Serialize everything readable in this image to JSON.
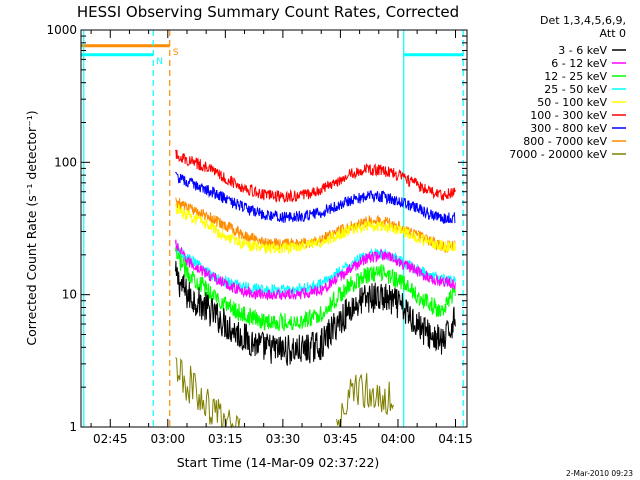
{
  "chart_data": {
    "type": "line",
    "title": "HESSI Observing Summary Count Rates, Corrected",
    "xlabel": "Start Time (14-Mar-09 02:37:22)",
    "ylabel": "Corrected Count Rate (s⁻¹ detector⁻¹)",
    "yscale": "log",
    "ylim": [
      1,
      1000
    ],
    "xlim_minutes": [
      157.37,
      258.0
    ],
    "x_ticks": [
      {
        "t": 165,
        "label": "02:45"
      },
      {
        "t": 180,
        "label": "03:00"
      },
      {
        "t": 195,
        "label": "03:15"
      },
      {
        "t": 210,
        "label": "03:30"
      },
      {
        "t": 225,
        "label": "03:45"
      },
      {
        "t": 240,
        "label": "04:00"
      },
      {
        "t": 255,
        "label": "04:15"
      }
    ],
    "y_ticks": [
      {
        "v": 1,
        "label": "1"
      },
      {
        "v": 10,
        "label": "10"
      },
      {
        "v": 100,
        "label": "100"
      },
      {
        "v": 1000,
        "label": "1000"
      }
    ],
    "grid": false,
    "legend_placement": "right",
    "legend_header": [
      "Det 1,3,4,5,6,9,",
      "Att 0"
    ],
    "series": [
      {
        "name": "3 - 6 keV",
        "color": "#000000",
        "x": [
          182,
          185,
          190,
          195,
          200,
          205,
          210,
          215,
          220,
          224,
          228,
          232,
          236,
          240,
          244,
          248,
          252,
          255
        ],
        "y": [
          14,
          10,
          8,
          6,
          4.7,
          4,
          3.8,
          3.8,
          4.2,
          6,
          8,
          9.5,
          9.5,
          8.5,
          6.5,
          5,
          4.3,
          7
        ]
      },
      {
        "name": "6 - 12 keV",
        "color": "#ff00ff",
        "x": [
          182,
          185,
          190,
          195,
          200,
          205,
          210,
          215,
          220,
          224,
          228,
          232,
          236,
          240,
          244,
          248,
          252,
          255
        ],
        "y": [
          24,
          18,
          14.5,
          12,
          10.5,
          10,
          10,
          10.2,
          11,
          13,
          16,
          19,
          20,
          18,
          15.5,
          13.5,
          12.5,
          12
        ]
      },
      {
        "name": "12 - 25 keV",
        "color": "#00ff00",
        "x": [
          182,
          185,
          190,
          195,
          200,
          205,
          210,
          215,
          220,
          224,
          228,
          232,
          236,
          240,
          244,
          248,
          252,
          255
        ],
        "y": [
          20,
          15,
          11,
          8.5,
          7,
          6.3,
          6.2,
          6.3,
          7.2,
          9.5,
          12,
          14,
          14.5,
          13,
          10.5,
          8.5,
          7.5,
          11
        ]
      },
      {
        "name": "25 - 50 keV",
        "color": "#00ffff",
        "x": [
          182,
          185,
          190,
          195,
          200,
          205,
          210,
          215,
          220,
          224,
          228,
          232,
          236,
          240,
          244,
          248,
          252,
          255
        ],
        "y": [
          23,
          19,
          15,
          12.5,
          11.5,
          10.8,
          10.8,
          11,
          12,
          14.5,
          17,
          20,
          20.5,
          18.5,
          16,
          14,
          13,
          13
        ]
      },
      {
        "name": "50 - 100 keV",
        "color": "#ffff00",
        "x": [
          182,
          185,
          190,
          195,
          200,
          205,
          210,
          215,
          220,
          224,
          228,
          232,
          236,
          240,
          244,
          248,
          252,
          255
        ],
        "y": [
          45,
          40,
          34,
          28,
          24,
          22.5,
          22.5,
          23,
          25,
          28,
          31,
          33,
          33,
          31,
          28,
          25,
          23,
          23
        ]
      },
      {
        "name": "100 - 300 keV",
        "color": "#ff0000",
        "x": [
          182,
          185,
          190,
          195,
          200,
          205,
          210,
          215,
          220,
          224,
          228,
          232,
          236,
          240,
          244,
          248,
          252,
          255
        ],
        "y": [
          115,
          105,
          92,
          76,
          64,
          57,
          55,
          56,
          62,
          72,
          82,
          88,
          87,
          80,
          70,
          61,
          56,
          60
        ]
      },
      {
        "name": "300 - 800 keV",
        "color": "#0000ff",
        "x": [
          182,
          185,
          190,
          195,
          200,
          205,
          210,
          215,
          220,
          224,
          228,
          232,
          236,
          240,
          244,
          248,
          252,
          255
        ],
        "y": [
          78,
          71,
          63,
          53,
          45,
          40,
          38.5,
          39,
          42,
          47,
          52,
          55,
          55,
          51,
          46,
          41,
          38,
          38
        ]
      },
      {
        "name": "800 - 7000 keV",
        "color": "#ff8c00",
        "x": [
          182,
          185,
          190,
          195,
          200,
          205,
          210,
          215,
          220,
          224,
          228,
          232,
          236,
          240,
          244,
          248,
          252,
          255
        ],
        "y": [
          50,
          46,
          40,
          33,
          28,
          25,
          24,
          24.5,
          26,
          29.5,
          33,
          36,
          36,
          33,
          29,
          25.5,
          23,
          24
        ]
      },
      {
        "name": "7000 - 20000 keV",
        "color": "#808000",
        "x": [
          182,
          185,
          188,
          190,
          193,
          196,
          199,
          224,
          226,
          230,
          234,
          238,
          239
        ],
        "y": [
          2.6,
          2.2,
          1.8,
          1.5,
          1.2,
          1,
          1,
          1,
          1.6,
          1.9,
          1.9,
          1.7,
          1.1
        ]
      }
    ],
    "annotations": [
      {
        "kind": "state",
        "label": "N",
        "color": "#00ffff",
        "level": 650,
        "x_from": 157.37,
        "x_to": 176.2
      },
      {
        "kind": "state",
        "label": "",
        "color": "#00ffff",
        "level": 650,
        "x_from": 241.5,
        "x_to": 257
      },
      {
        "kind": "state",
        "label": "S",
        "color": "#ff8c00",
        "level": 760,
        "x_from": 157.37,
        "x_to": 180.5
      },
      {
        "kind": "vline",
        "color": "#00ffff",
        "style": "dashed",
        "x": 176.2
      },
      {
        "kind": "vline",
        "color": "#00ffff",
        "style": "dashed",
        "x": 257
      },
      {
        "kind": "vline",
        "color": "#ff8c00",
        "style": "dashed",
        "x": 180.5
      },
      {
        "kind": "vline",
        "color": "#00ffff",
        "style": "solid",
        "x": 158.1
      },
      {
        "kind": "vline",
        "color": "#00ffff",
        "style": "solid",
        "x": 241.5
      }
    ],
    "footer_timestamp": "2-Mar-2010 09:23"
  }
}
